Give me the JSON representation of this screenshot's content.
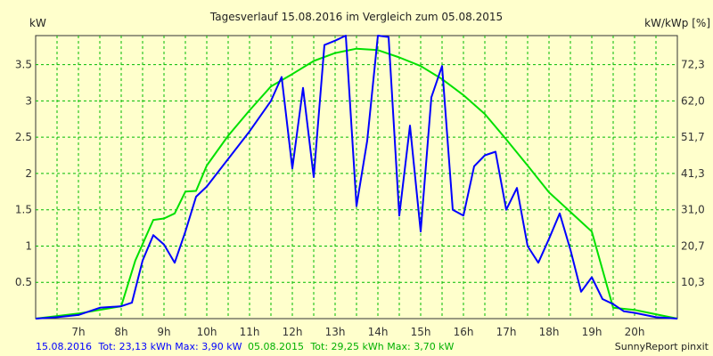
{
  "chart_data": {
    "type": "line",
    "title": "Tagesverlauf 15.08.2016 im Vergleich zum 05.08.2015",
    "ylabel_left": "kW",
    "ylabel_right": "kW/kWp [%]",
    "xlim": [
      6.0,
      21.0
    ],
    "ylim": [
      0,
      3.9
    ],
    "grid": true,
    "x_tick_labels": [
      "7h",
      "8h",
      "9h",
      "10h",
      "11h",
      "12h",
      "13h",
      "14h",
      "15h",
      "16h",
      "17h",
      "18h",
      "19h",
      "20h"
    ],
    "y_ticks_left": [
      "0.5",
      "1",
      "1.5",
      "2",
      "2.5",
      "3",
      "3.5"
    ],
    "y_ticks_right": [
      "10,3",
      "20,7",
      "31,0",
      "41,3",
      "51,7",
      "62,0",
      "72,3"
    ],
    "series": [
      {
        "name": "15.08.2016",
        "color": "#0000ff",
        "points": [
          [
            6.0,
            0
          ],
          [
            6.5,
            0.02
          ],
          [
            7.0,
            0.05
          ],
          [
            7.5,
            0.15
          ],
          [
            8.0,
            0.17
          ],
          [
            8.25,
            0.22
          ],
          [
            8.5,
            0.8
          ],
          [
            8.75,
            1.15
          ],
          [
            9.0,
            1.02
          ],
          [
            9.25,
            0.77
          ],
          [
            9.5,
            1.2
          ],
          [
            9.75,
            1.68
          ],
          [
            10.0,
            1.82
          ],
          [
            10.5,
            2.2
          ],
          [
            11.0,
            2.58
          ],
          [
            11.5,
            3.0
          ],
          [
            11.75,
            3.33
          ],
          [
            12.0,
            2.07
          ],
          [
            12.25,
            3.18
          ],
          [
            12.5,
            1.95
          ],
          [
            12.75,
            3.77
          ],
          [
            13.0,
            3.83
          ],
          [
            13.25,
            3.9
          ],
          [
            13.5,
            1.55
          ],
          [
            13.75,
            2.45
          ],
          [
            14.0,
            3.9
          ],
          [
            14.25,
            3.88
          ],
          [
            14.5,
            1.42
          ],
          [
            14.75,
            2.66
          ],
          [
            15.0,
            1.2
          ],
          [
            15.25,
            3.05
          ],
          [
            15.5,
            3.48
          ],
          [
            15.75,
            1.5
          ],
          [
            16.0,
            1.42
          ],
          [
            16.25,
            2.1
          ],
          [
            16.5,
            2.25
          ],
          [
            16.75,
            2.3
          ],
          [
            17.0,
            1.5
          ],
          [
            17.25,
            1.8
          ],
          [
            17.5,
            1.0
          ],
          [
            17.75,
            0.77
          ],
          [
            18.0,
            1.1
          ],
          [
            18.25,
            1.45
          ],
          [
            18.5,
            0.95
          ],
          [
            18.75,
            0.37
          ],
          [
            19.0,
            0.57
          ],
          [
            19.25,
            0.27
          ],
          [
            19.5,
            0.2
          ],
          [
            19.75,
            0.1
          ],
          [
            20.0,
            0.08
          ],
          [
            20.5,
            0.02
          ],
          [
            21.0,
            0
          ]
        ]
      },
      {
        "name": "05.08.2015",
        "color": "#00e000",
        "points": [
          [
            6.0,
            0
          ],
          [
            7.0,
            0.07
          ],
          [
            7.5,
            0.12
          ],
          [
            8.0,
            0.17
          ],
          [
            8.33,
            0.8
          ],
          [
            8.75,
            1.36
          ],
          [
            9.0,
            1.38
          ],
          [
            9.25,
            1.45
          ],
          [
            9.5,
            1.75
          ],
          [
            9.75,
            1.76
          ],
          [
            10.0,
            2.11
          ],
          [
            10.5,
            2.52
          ],
          [
            11.0,
            2.87
          ],
          [
            11.5,
            3.2
          ],
          [
            12.0,
            3.37
          ],
          [
            12.5,
            3.55
          ],
          [
            13.0,
            3.66
          ],
          [
            13.5,
            3.72
          ],
          [
            14.0,
            3.7
          ],
          [
            14.5,
            3.6
          ],
          [
            15.0,
            3.48
          ],
          [
            15.5,
            3.3
          ],
          [
            16.0,
            3.08
          ],
          [
            16.5,
            2.82
          ],
          [
            17.0,
            2.47
          ],
          [
            17.5,
            2.11
          ],
          [
            18.0,
            1.74
          ],
          [
            18.5,
            1.47
          ],
          [
            19.0,
            1.2
          ],
          [
            19.5,
            0.15
          ],
          [
            20.0,
            0.12
          ],
          [
            20.5,
            0.06
          ],
          [
            21.0,
            0
          ]
        ]
      }
    ]
  },
  "footer": {
    "series1_date": "15.08.2016",
    "series1_stats": "Tot: 23,13 kWh Max: 3,90 kW",
    "series2_date": "05.08.2015",
    "series2_stats": "Tot: 29,25 kWh Max: 3,70 kW",
    "brand": "SunnyReport pinxit"
  }
}
